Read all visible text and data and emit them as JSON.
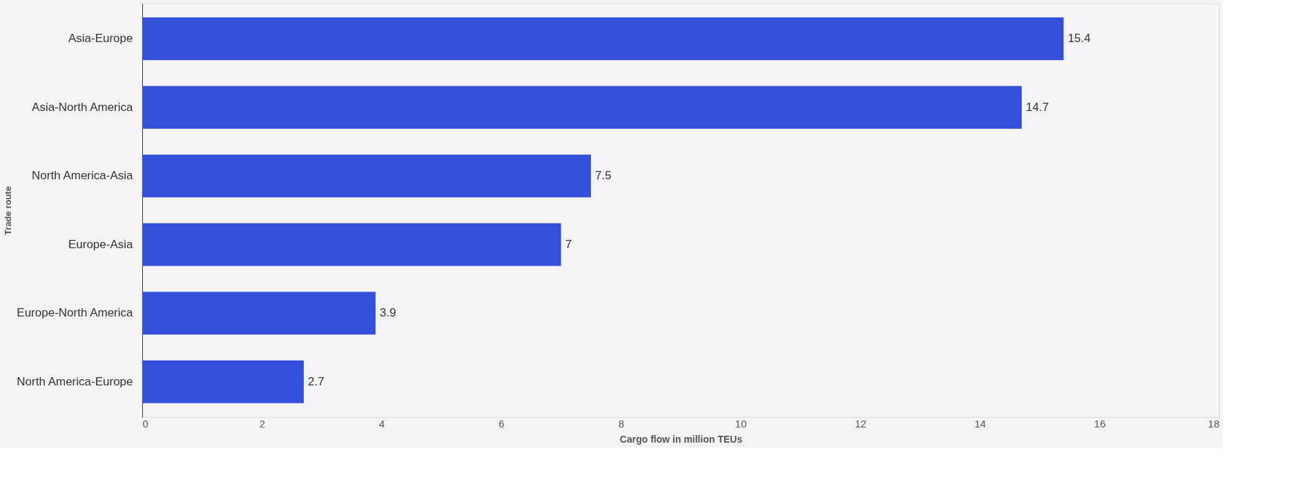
{
  "chart_data": {
    "type": "bar",
    "orientation": "horizontal",
    "categories": [
      "Asia-Europe",
      "Asia-North America",
      "North America-Asia",
      "Europe-Asia",
      "Europe-North America",
      "North America-Europe"
    ],
    "values": [
      15.4,
      14.7,
      7.5,
      7,
      3.9,
      2.7
    ],
    "color": "#3550d8",
    "xlim": [
      0,
      18
    ],
    "xticks": [
      0,
      2,
      4,
      6,
      8,
      10,
      12,
      14,
      16,
      18
    ],
    "xlabel": "Cargo flow in million TEUs",
    "ylabel": "Trade route",
    "data_labels": true,
    "grid": false
  }
}
